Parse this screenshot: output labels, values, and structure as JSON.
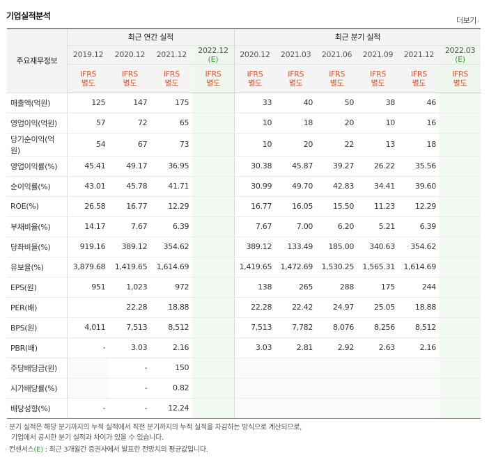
{
  "header": {
    "title": "기업실적분석",
    "more_label": "더보기",
    "more_arrow": "›"
  },
  "table": {
    "row_header_label": "주요재무정보",
    "group_annual": "최근 연간 실적",
    "group_quarter": "최근 분기 실적",
    "annual_periods": [
      "2019.12",
      "2020.12",
      "2021.12",
      "2022.12"
    ],
    "annual_estimate_mark": "(E)",
    "quarter_periods": [
      "2020.12",
      "2021.03",
      "2021.06",
      "2021.09",
      "2021.12",
      "2022.03"
    ],
    "quarter_estimate_mark": "(E)",
    "ifrs_line1": "IFRS",
    "ifrs_line2": "별도",
    "rows": [
      {
        "label": "매출액(억원)",
        "annual": [
          "125",
          "147",
          "175",
          ""
        ],
        "quarter": [
          "33",
          "40",
          "50",
          "38",
          "46",
          ""
        ]
      },
      {
        "label": "영업이익(억원)",
        "annual": [
          "57",
          "72",
          "65",
          ""
        ],
        "quarter": [
          "10",
          "18",
          "20",
          "10",
          "16",
          ""
        ]
      },
      {
        "label": "당기순이익(억원)",
        "annual": [
          "54",
          "67",
          "73",
          ""
        ],
        "quarter": [
          "10",
          "20",
          "22",
          "13",
          "18",
          ""
        ]
      },
      {
        "label": "영업이익률(%)",
        "annual": [
          "45.41",
          "49.17",
          "36.95",
          ""
        ],
        "quarter": [
          "30.38",
          "45.87",
          "39.27",
          "26.22",
          "35.56",
          ""
        ]
      },
      {
        "label": "순이익률(%)",
        "annual": [
          "43.01",
          "45.78",
          "41.71",
          ""
        ],
        "quarter": [
          "30.99",
          "49.70",
          "42.83",
          "34.41",
          "39.60",
          ""
        ]
      },
      {
        "label": "ROE(%)",
        "annual": [
          "26.58",
          "16.77",
          "12.29",
          ""
        ],
        "quarter": [
          "16.77",
          "16.05",
          "15.50",
          "11.23",
          "12.29",
          ""
        ]
      },
      {
        "label": "부채비율(%)",
        "annual": [
          "14.17",
          "7.67",
          "6.39",
          ""
        ],
        "quarter": [
          "7.67",
          "7.00",
          "6.20",
          "5.21",
          "6.39",
          ""
        ]
      },
      {
        "label": "당좌비율(%)",
        "annual": [
          "919.16",
          "389.12",
          "354.62",
          ""
        ],
        "quarter": [
          "389.12",
          "133.49",
          "185.00",
          "340.63",
          "354.62",
          ""
        ]
      },
      {
        "label": "유보율(%)",
        "annual": [
          "3,879.68",
          "1,419.65",
          "1,614.69",
          ""
        ],
        "quarter": [
          "1,419.65",
          "1,472.69",
          "1,530.25",
          "1,565.31",
          "1,614.69",
          ""
        ]
      },
      {
        "label": "EPS(원)",
        "annual": [
          "951",
          "1,023",
          "972",
          ""
        ],
        "quarter": [
          "138",
          "265",
          "288",
          "175",
          "244",
          ""
        ]
      },
      {
        "label": "PER(배)",
        "annual": [
          "",
          "22.28",
          "18.88",
          ""
        ],
        "quarter": [
          "22.28",
          "22.42",
          "24.97",
          "25.05",
          "18.88",
          ""
        ]
      },
      {
        "label": "BPS(원)",
        "annual": [
          "4,011",
          "7,513",
          "8,512",
          ""
        ],
        "quarter": [
          "7,513",
          "7,782",
          "8,076",
          "8,256",
          "8,512",
          ""
        ]
      },
      {
        "label": "PBR(배)",
        "annual": [
          "-",
          "3.03",
          "2.16",
          ""
        ],
        "quarter": [
          "3.03",
          "2.81",
          "2.92",
          "2.63",
          "2.16",
          ""
        ]
      },
      {
        "label": "주당배당금(원)",
        "annual": [
          "",
          "-",
          "150",
          ""
        ],
        "quarter": [
          "",
          "",
          "",
          "",
          "",
          ""
        ]
      },
      {
        "label": "시가배당률(%)",
        "annual": [
          "",
          "-",
          "0.82",
          ""
        ],
        "quarter": [
          "",
          "",
          "",
          "",
          "",
          ""
        ]
      },
      {
        "label": "배당성향(%)",
        "annual": [
          "-",
          "-",
          "12.24",
          ""
        ],
        "quarter": [
          "",
          "",
          "",
          "",
          "",
          ""
        ]
      }
    ]
  },
  "notes": {
    "line1": "분기 실적은 해당 분기까지의 누적 실적에서 직전 분기까지의 누적 실적을 차감하는 방식으로 계산되므로,",
    "line2": "기업에서 공시한 분기 실적과 차이가 있을 수 있습니다.",
    "line3_prefix": "컨센서스",
    "line3_mark": "(E)",
    "line3_rest": ": 최근 3개월간 증권사에서 발표한 전망치의 평균값입니다.",
    "bullet": "·"
  }
}
